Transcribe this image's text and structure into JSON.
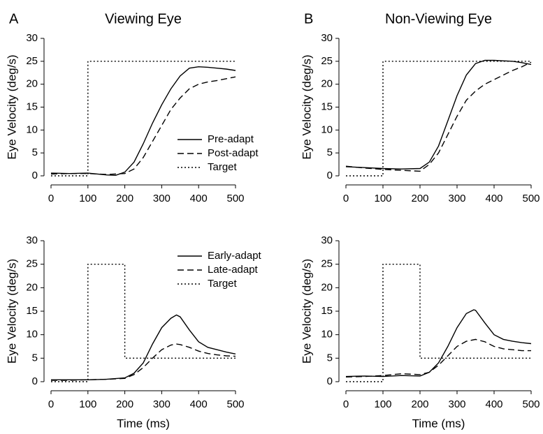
{
  "chart_data": [
    {
      "type": "line",
      "panel": "A",
      "title": "Viewing Eye",
      "ylabel": "Eye Velocity (deg/s)",
      "xlim": [
        0,
        500
      ],
      "ylim": [
        0,
        30
      ],
      "xticks": [
        0,
        100,
        200,
        300,
        400,
        500
      ],
      "yticks": [
        0,
        5,
        10,
        15,
        20,
        25,
        30
      ],
      "legend": "center right",
      "series": [
        {
          "name": "Pre-adapt",
          "color": "#000000",
          "dash": "solid",
          "x": [
            0,
            50,
            100,
            150,
            175,
            200,
            225,
            250,
            275,
            300,
            325,
            350,
            375,
            400,
            425,
            450,
            475,
            500
          ],
          "values": [
            0.6,
            0.5,
            0.6,
            0.2,
            0.1,
            0.8,
            3,
            7,
            11.5,
            15.5,
            19,
            21.8,
            23.5,
            23.8,
            23.7,
            23.5,
            23.3,
            23
          ]
        },
        {
          "name": "Post-adapt",
          "color": "#000000",
          "dash": "dashed",
          "x": [
            0,
            50,
            100,
            150,
            200,
            225,
            250,
            275,
            300,
            325,
            350,
            375,
            400,
            425,
            450,
            475,
            500
          ],
          "values": [
            0.4,
            0.5,
            0.5,
            0.3,
            0.5,
            1.5,
            4,
            7.5,
            11,
            14.5,
            17,
            19,
            20,
            20.5,
            20.8,
            21.2,
            21.6
          ]
        },
        {
          "name": "Target",
          "color": "#000000",
          "dash": "dotted",
          "x": [
            0,
            100,
            100,
            500
          ],
          "values": [
            0,
            0,
            25,
            25
          ]
        }
      ]
    },
    {
      "type": "line",
      "panel": "B",
      "title": "Non-Viewing Eye",
      "ylabel": "Eye Velocity (deg/s)",
      "xlim": [
        0,
        500
      ],
      "ylim": [
        0,
        30
      ],
      "xticks": [
        0,
        100,
        200,
        300,
        400,
        500
      ],
      "yticks": [
        0,
        5,
        10,
        15,
        20,
        25,
        30
      ],
      "series": [
        {
          "color": "#000000",
          "dash": "solid",
          "x": [
            0,
            50,
            100,
            150,
            200,
            225,
            250,
            275,
            300,
            325,
            350,
            375,
            400,
            425,
            450,
            475,
            500
          ],
          "values": [
            2,
            1.8,
            1.6,
            1.5,
            1.6,
            3,
            6.5,
            12,
            17.5,
            22,
            24.5,
            25.2,
            25.2,
            25.1,
            25,
            24.7,
            24.3
          ]
        },
        {
          "color": "#000000",
          "dash": "dashed",
          "x": [
            0,
            50,
            100,
            150,
            200,
            225,
            250,
            275,
            300,
            325,
            350,
            375,
            400,
            425,
            450,
            475,
            500
          ],
          "values": [
            2.1,
            1.7,
            1.4,
            1.2,
            1,
            2.5,
            5,
            9,
            13,
            16.5,
            18.5,
            20,
            21,
            22,
            23,
            23.8,
            24.8
          ]
        },
        {
          "color": "#000000",
          "dash": "dotted",
          "x": [
            0,
            100,
            100,
            500
          ],
          "values": [
            0,
            0,
            25,
            25
          ]
        }
      ]
    },
    {
      "type": "line",
      "ylabel": "Eye Velocity (deg/s)",
      "xlabel": "Time (ms)",
      "xlim": [
        0,
        500
      ],
      "ylim": [
        0,
        30
      ],
      "xticks": [
        0,
        100,
        200,
        300,
        400,
        500
      ],
      "yticks": [
        0,
        5,
        10,
        15,
        20,
        25,
        30
      ],
      "legend": "upper right",
      "series": [
        {
          "name": "Early-adapt",
          "color": "#000000",
          "dash": "solid",
          "x": [
            0,
            50,
            100,
            150,
            200,
            225,
            250,
            275,
            300,
            325,
            340,
            350,
            375,
            400,
            425,
            450,
            475,
            500
          ],
          "values": [
            0.4,
            0.4,
            0.4,
            0.5,
            0.8,
            1.8,
            4,
            8,
            11.5,
            13.5,
            14.2,
            13.8,
            11,
            8.5,
            7.3,
            6.8,
            6.3,
            5.9
          ]
        },
        {
          "name": "Late-adapt",
          "color": "#000000",
          "dash": "dashed",
          "x": [
            0,
            50,
            100,
            150,
            200,
            225,
            250,
            275,
            300,
            325,
            340,
            350,
            375,
            400,
            425,
            450,
            475,
            500
          ],
          "values": [
            0.3,
            0.3,
            0.4,
            0.5,
            0.7,
            1.5,
            3,
            5,
            6.8,
            7.8,
            8,
            7.9,
            7.3,
            6.5,
            6,
            5.7,
            5.5,
            5.4
          ]
        },
        {
          "name": "Target",
          "color": "#000000",
          "dash": "dotted",
          "x": [
            0,
            100,
            100,
            200,
            200,
            500
          ],
          "values": [
            0,
            0,
            25,
            25,
            5,
            5
          ]
        }
      ]
    },
    {
      "type": "line",
      "ylabel": "Eye Velocity (deg/s)",
      "xlabel": "Time (ms)",
      "xlim": [
        0,
        500
      ],
      "ylim": [
        0,
        30
      ],
      "xticks": [
        0,
        100,
        200,
        300,
        400,
        500
      ],
      "yticks": [
        0,
        5,
        10,
        15,
        20,
        25,
        30
      ],
      "series": [
        {
          "color": "#000000",
          "dash": "solid",
          "x": [
            0,
            50,
            100,
            150,
            200,
            225,
            250,
            275,
            300,
            325,
            345,
            350,
            375,
            400,
            425,
            450,
            475,
            500
          ],
          "values": [
            1.1,
            1.2,
            1.1,
            1.3,
            1.2,
            2,
            4,
            7.5,
            11.5,
            14.5,
            15.3,
            15.2,
            12.5,
            10,
            9,
            8.6,
            8.3,
            8.1
          ]
        },
        {
          "color": "#000000",
          "dash": "dashed",
          "x": [
            0,
            50,
            100,
            150,
            200,
            225,
            250,
            275,
            300,
            325,
            350,
            375,
            400,
            425,
            450,
            475,
            500
          ],
          "values": [
            1,
            1.1,
            1.3,
            1.7,
            1.5,
            2,
            3.5,
            5.5,
            7.5,
            8.6,
            9,
            8.5,
            7.5,
            7,
            6.8,
            6.6,
            6.6
          ]
        },
        {
          "color": "#000000",
          "dash": "dotted",
          "x": [
            0,
            100,
            100,
            200,
            200,
            500
          ],
          "values": [
            0,
            0,
            25,
            25,
            5,
            5
          ]
        }
      ]
    }
  ]
}
